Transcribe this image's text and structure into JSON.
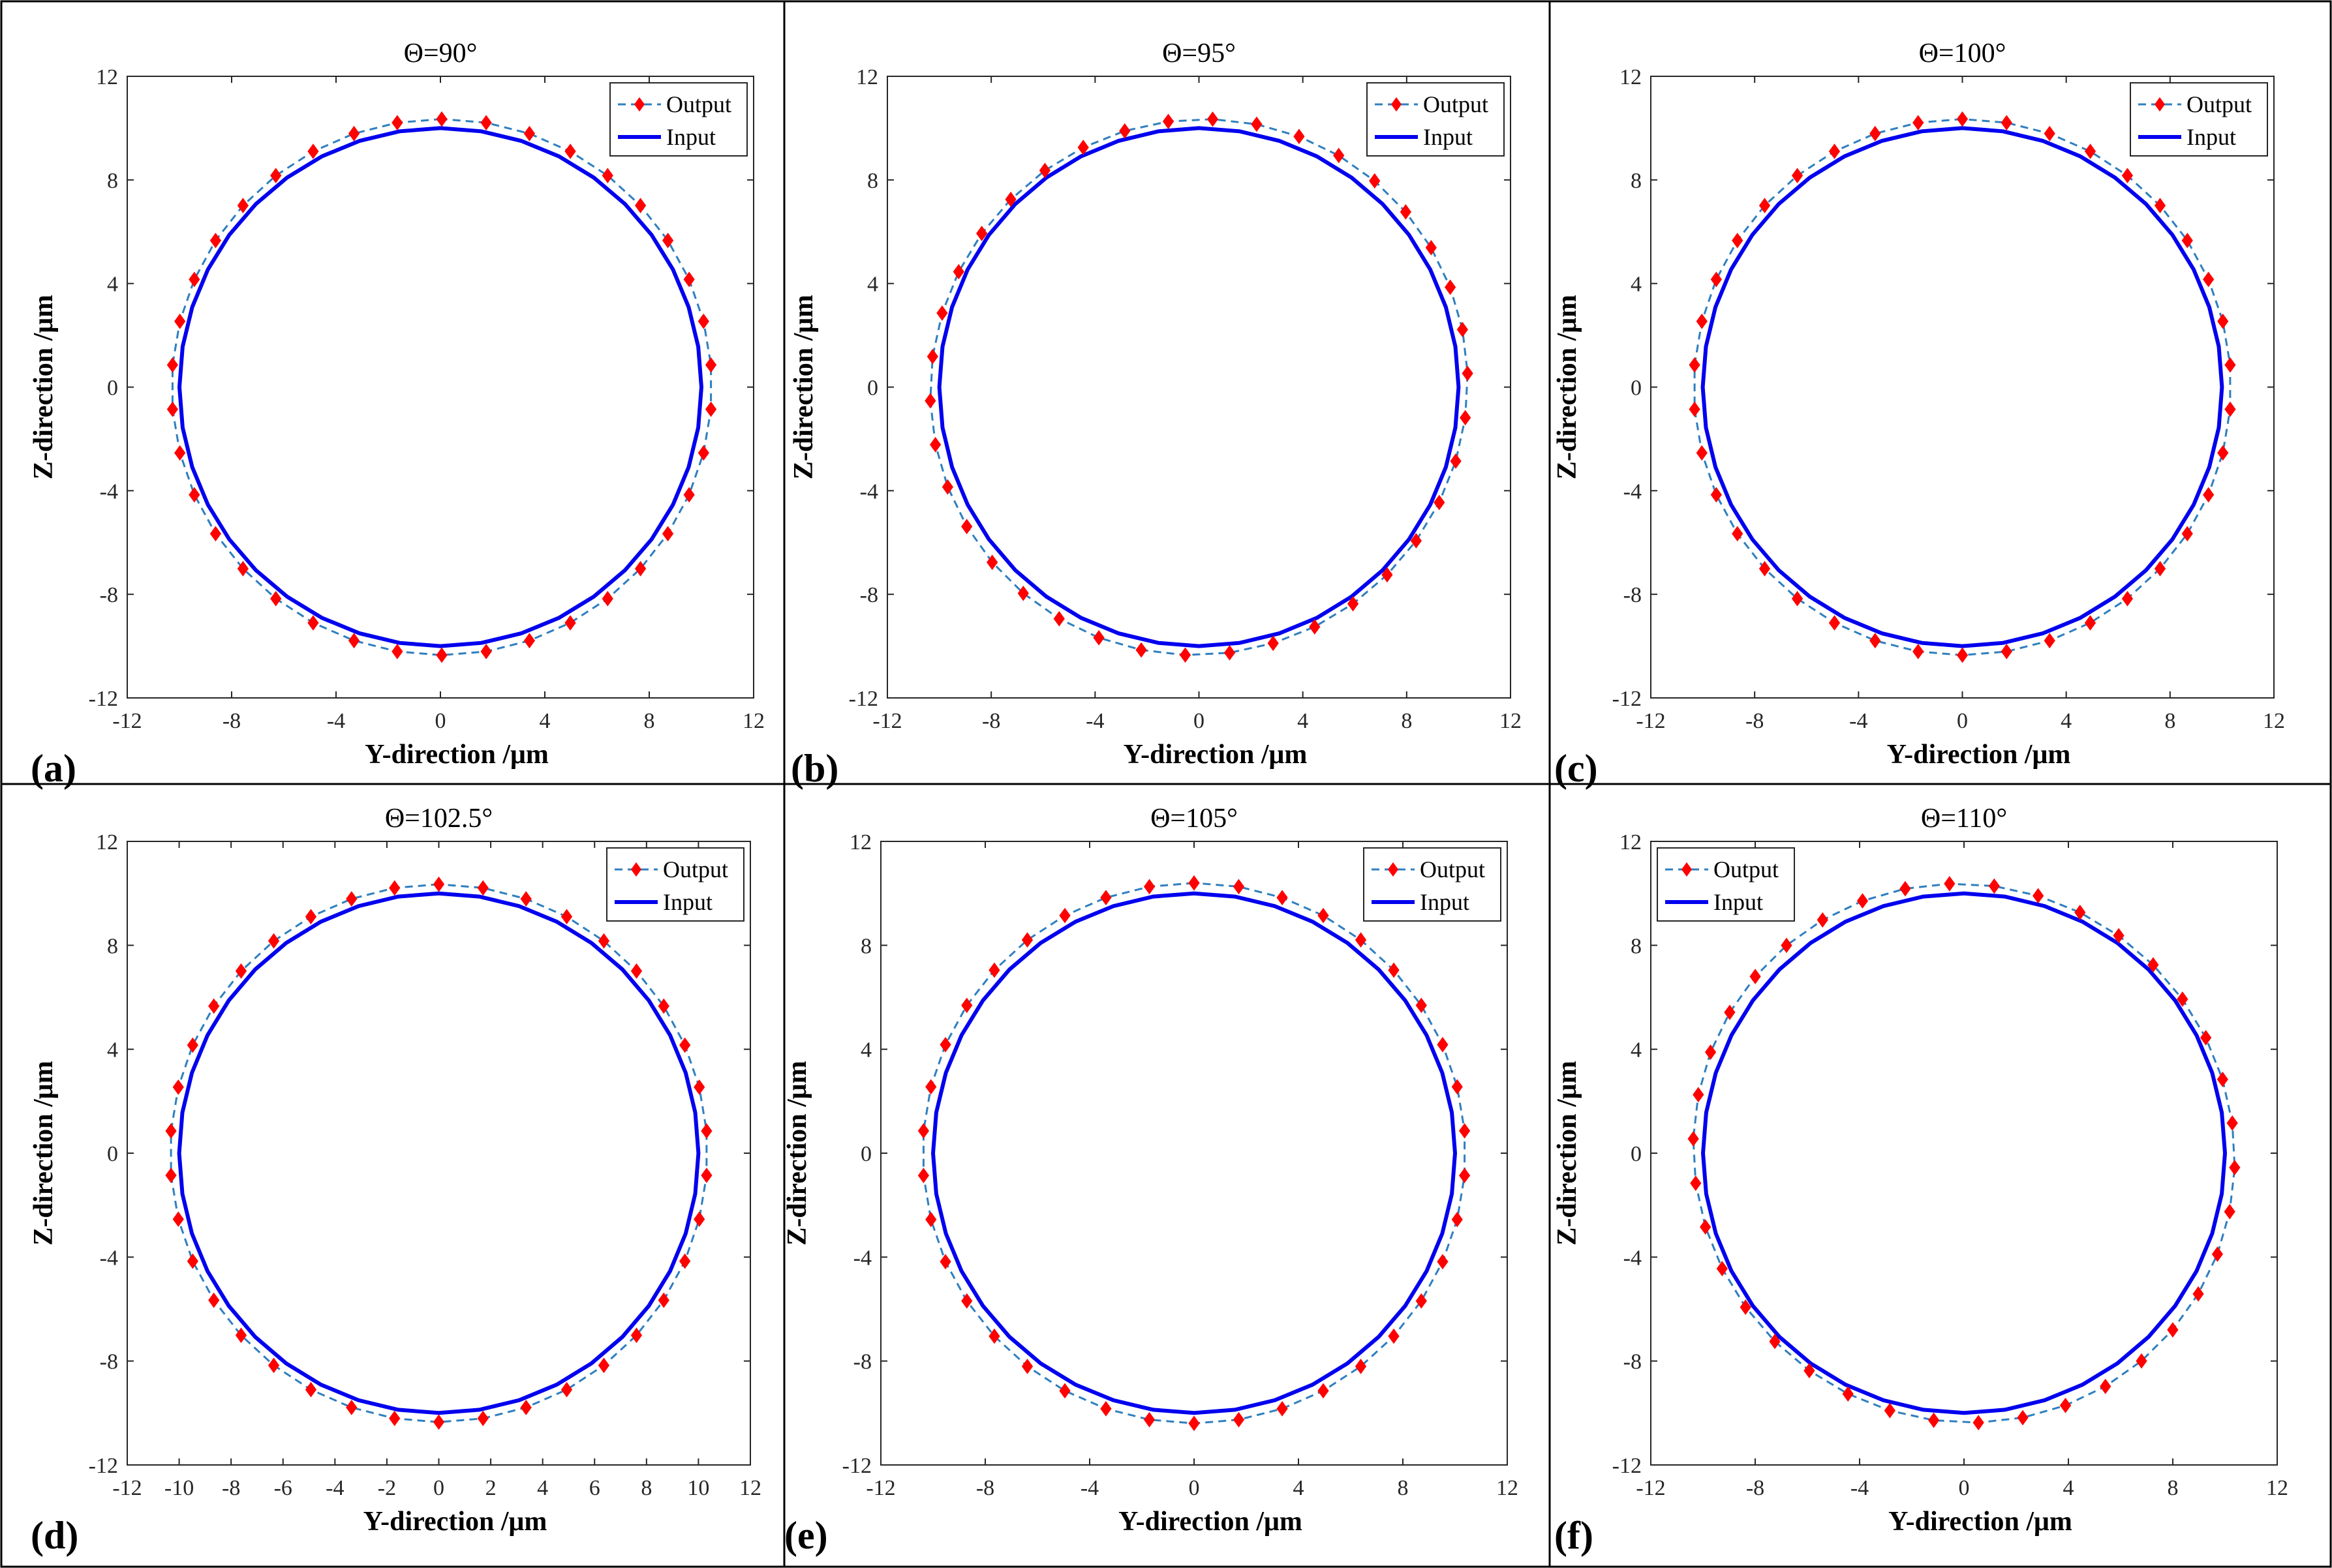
{
  "figure": {
    "rows": 2,
    "cols": 3
  },
  "style": {
    "output_color": "#2E7FBF",
    "marker_color": "#FF0000",
    "input_color": "#0000EE",
    "axis_color": "#262626"
  },
  "chart_data": [
    {
      "panel_label": "(a)",
      "title": "Θ=90°",
      "type": "line",
      "xlabel": "Y-direction /μm",
      "ylabel": "Z-direction /μm",
      "xlim": [
        -12,
        12
      ],
      "ylim": [
        -12,
        12
      ],
      "xticks": [
        "-12",
        "-8",
        "-4",
        "0",
        "4",
        "8",
        "12"
      ],
      "yticks": [
        "-12",
        "-8",
        "-4",
        "0",
        "4",
        "8",
        "12"
      ],
      "legend": {
        "position": "top-right",
        "entries": [
          "Output",
          "Input"
        ]
      },
      "series": [
        {
          "name": "Output",
          "style": "dashed-diamond",
          "shape": "ellipse",
          "center": [
            0.05,
            0
          ],
          "radius": 10.35,
          "rx": 10.35,
          "ry": 10.35,
          "tilt_deg": 0,
          "points": 38
        },
        {
          "name": "Input",
          "style": "solid",
          "shape": "circle",
          "center": [
            0,
            0
          ],
          "radius": 10,
          "points": 40
        }
      ]
    },
    {
      "panel_label": "(b)",
      "title": "Θ=95°",
      "type": "line",
      "xlabel": "Y-direction /μm",
      "ylabel": "Z-direction /μm",
      "xlim": [
        -12,
        12
      ],
      "ylim": [
        -12,
        12
      ],
      "xticks": [
        "-12",
        "-8",
        "-4",
        "0",
        "4",
        "8",
        "12"
      ],
      "yticks": [
        "-12",
        "-8",
        "-4",
        "0",
        "4",
        "8",
        "12"
      ],
      "legend": {
        "position": "top-right",
        "entries": [
          "Output",
          "Input"
        ]
      },
      "series": [
        {
          "name": "Output",
          "style": "dashed-diamond",
          "shape": "ellipse",
          "center": [
            0,
            0
          ],
          "rx": 10.45,
          "ry": 10.25,
          "tilt_deg": 45,
          "points": 38
        },
        {
          "name": "Input",
          "style": "solid",
          "shape": "circle",
          "center": [
            0,
            0
          ],
          "radius": 10,
          "points": 40
        }
      ]
    },
    {
      "panel_label": "(c)",
      "title": "Θ=100°",
      "type": "line",
      "xlabel": "Y-direction /μm",
      "ylabel": "Z-direction /μm",
      "xlim": [
        -12,
        12
      ],
      "ylim": [
        -12,
        12
      ],
      "xticks": [
        "-12",
        "-8",
        "-4",
        "0",
        "4",
        "8",
        "12"
      ],
      "yticks": [
        "-12",
        "-8",
        "-4",
        "0",
        "4",
        "8",
        "12"
      ],
      "legend": {
        "position": "top-right",
        "entries": [
          "Output",
          "Input"
        ]
      },
      "series": [
        {
          "name": "Output",
          "style": "dashed-diamond",
          "shape": "circle",
          "center": [
            0,
            0
          ],
          "radius": 10.35,
          "points": 38
        },
        {
          "name": "Input",
          "style": "solid",
          "shape": "circle",
          "center": [
            0,
            0
          ],
          "radius": 10,
          "points": 40
        }
      ]
    },
    {
      "panel_label": "(d)",
      "title": "Θ=102.5°",
      "type": "line",
      "xlabel": "Y-direction /μm",
      "ylabel": "Z-direction /μm",
      "xlim": [
        -12,
        12
      ],
      "ylim": [
        -12,
        12
      ],
      "xticks": [
        "-12",
        "-10",
        "-8",
        "-6",
        "-4",
        "-2",
        "0",
        "2",
        "4",
        "6",
        "8",
        "10",
        "12"
      ],
      "yticks": [
        "-12",
        "-8",
        "-4",
        "0",
        "4",
        "8",
        "12"
      ],
      "legend": {
        "position": "top-right",
        "entries": [
          "Output",
          "Input"
        ]
      },
      "series": [
        {
          "name": "Output",
          "style": "dashed-diamond",
          "shape": "circle",
          "center": [
            0,
            0
          ],
          "radius": 10.35,
          "points": 38
        },
        {
          "name": "Input",
          "style": "solid",
          "shape": "circle",
          "center": [
            0,
            0
          ],
          "radius": 10,
          "points": 40
        }
      ]
    },
    {
      "panel_label": "(e)",
      "title": "Θ=105°",
      "type": "line",
      "xlabel": "Y-direction /μm",
      "ylabel": "Z-direction /μm",
      "xlim": [
        -12,
        12
      ],
      "ylim": [
        -12,
        12
      ],
      "xticks": [
        "-12",
        "-8",
        "-4",
        "0",
        "4",
        "8",
        "12"
      ],
      "yticks": [
        "-12",
        "-8",
        "-4",
        "0",
        "4",
        "8",
        "12"
      ],
      "legend": {
        "position": "top-right",
        "entries": [
          "Output",
          "Input"
        ]
      },
      "series": [
        {
          "name": "Output",
          "style": "dashed-diamond",
          "shape": "circle",
          "center": [
            0,
            0
          ],
          "radius": 10.4,
          "points": 38
        },
        {
          "name": "Input",
          "style": "solid",
          "shape": "circle",
          "center": [
            0,
            0
          ],
          "radius": 10,
          "points": 40
        }
      ]
    },
    {
      "panel_label": "(f)",
      "title": "Θ=110°",
      "type": "line",
      "xlabel": "Y-direction /μm",
      "ylabel": "Z-direction /μm",
      "xlim": [
        -12,
        12
      ],
      "ylim": [
        -12,
        12
      ],
      "xticks": [
        "-12",
        "-8",
        "-4",
        "0",
        "4",
        "8",
        "12"
      ],
      "yticks": [
        "-12",
        "-8",
        "-4",
        "0",
        "4",
        "8",
        "12"
      ],
      "legend": {
        "position": "top-left",
        "entries": [
          "Output",
          "Input"
        ]
      },
      "series": [
        {
          "name": "Output",
          "style": "dashed-diamond",
          "shape": "ellipse",
          "center": [
            0,
            0
          ],
          "rx": 10.5,
          "ry": 10.25,
          "tilt_deg": -45,
          "points": 38
        },
        {
          "name": "Input",
          "style": "solid",
          "shape": "circle",
          "center": [
            0,
            0
          ],
          "radius": 10,
          "points": 40
        }
      ]
    }
  ]
}
